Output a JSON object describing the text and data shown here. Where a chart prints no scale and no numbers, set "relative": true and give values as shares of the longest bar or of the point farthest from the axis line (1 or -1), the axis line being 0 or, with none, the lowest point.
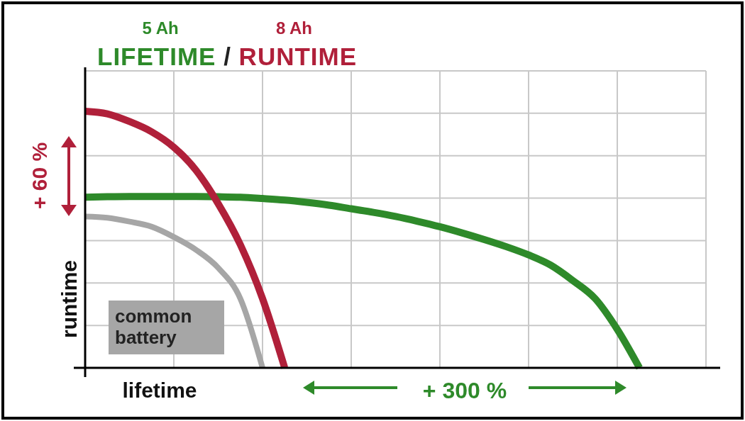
{
  "chart_data": {
    "type": "line",
    "relative": true,
    "title": "LIFETIME / RUNTIME",
    "xlabel": "lifetime",
    "ylabel": "runtime",
    "grid": true,
    "categories": [
      null,
      null,
      null,
      null,
      null,
      null,
      null,
      null,
      null,
      null,
      null,
      null,
      null,
      null,
      null,
      null,
      null,
      null,
      null,
      null,
      null,
      null,
      null,
      null,
      null,
      null,
      null,
      null,
      null
    ],
    "series": [
      {
        "name": "common battery",
        "color": "#a6a6a6",
        "values": [
          0.59,
          0.585,
          0.57,
          0.55,
          0.51,
          0.46,
          0.39,
          0.27,
          0,
          null,
          null,
          null,
          null,
          null,
          null,
          null,
          null,
          null,
          null,
          null,
          null,
          null,
          null,
          null,
          null,
          null,
          null,
          null,
          null
        ]
      },
      {
        "name": "5 Ah",
        "color": "#2e8a2a",
        "values": [
          0.665,
          0.667,
          0.668,
          0.668,
          0.668,
          0.668,
          0.667,
          0.665,
          0.66,
          0.654,
          0.645,
          0.634,
          0.62,
          0.606,
          0.59,
          0.571,
          0.55,
          0.526,
          0.5,
          0.472,
          0.44,
          0.4,
          0.34,
          0.27,
          0.15,
          0,
          null,
          null,
          null
        ]
      },
      {
        "name": "8 Ah",
        "color": "#b0203a",
        "values": [
          1,
          0.99,
          0.96,
          0.92,
          0.86,
          0.77,
          0.64,
          0.48,
          0.27,
          0,
          null,
          null,
          null,
          null,
          null,
          null,
          null,
          null,
          null,
          null,
          null,
          null,
          null,
          null,
          null,
          null,
          null,
          null,
          null
        ]
      }
    ],
    "annotations": [
      "+ 60 %",
      "+ 300 %"
    ]
  }
}
